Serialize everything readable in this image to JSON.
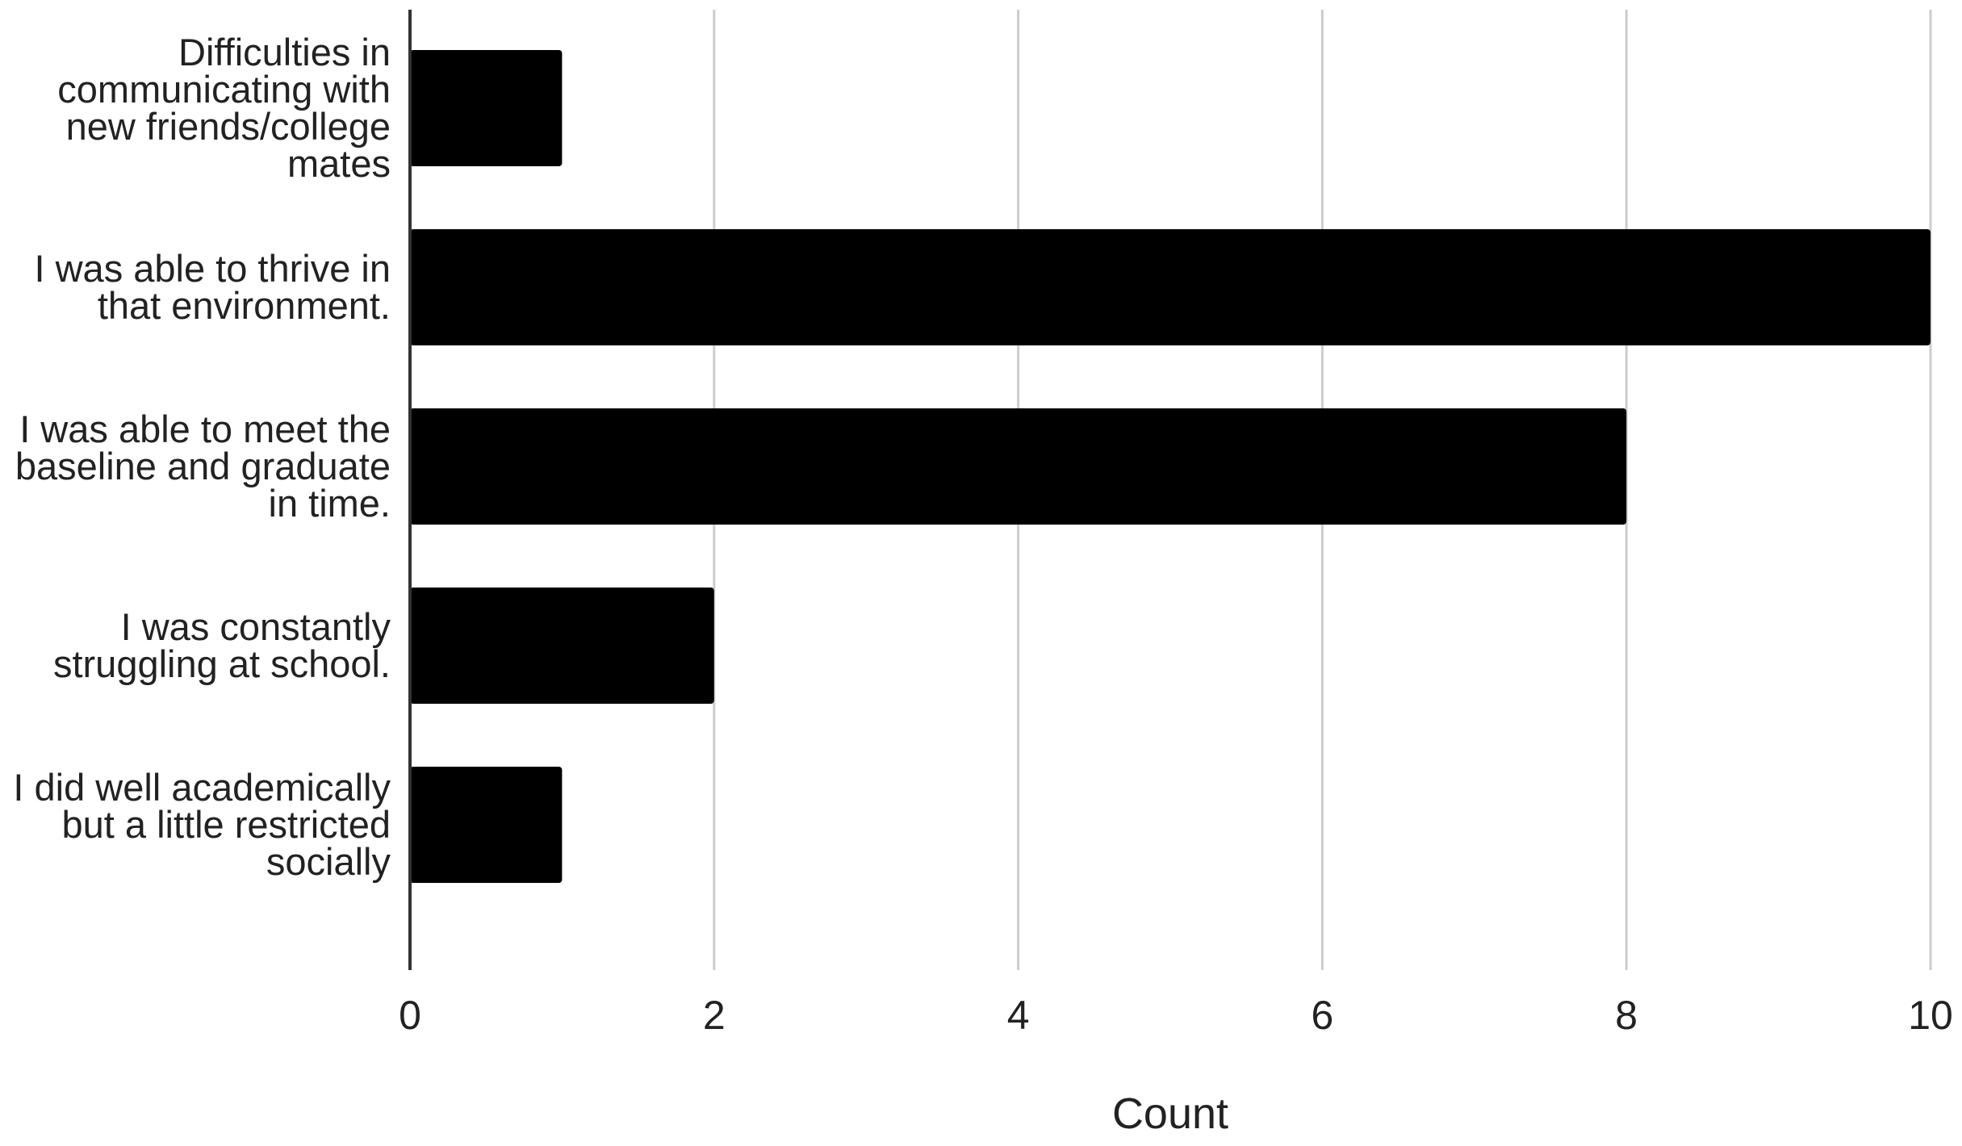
{
  "chart_data": {
    "type": "bar",
    "orientation": "horizontal",
    "categories": [
      "Difficulties in communicating with new friends/college mates",
      "I was able to thrive in that environment.",
      "I was able to meet the baseline and graduate in time.",
      "I was constantly struggling at school.",
      "I did well academically but a little restricted socially"
    ],
    "category_lines": [
      [
        "Difficulties in",
        "communicating with",
        "new friends/college",
        "mates"
      ],
      [
        "I was able to thrive in",
        "that environment."
      ],
      [
        "I was able to meet the",
        "baseline and graduate",
        "in time."
      ],
      [
        "I was constantly",
        "struggling at school."
      ],
      [
        "I did well academically",
        "but a little restricted",
        "socially"
      ]
    ],
    "values": [
      1,
      10,
      8,
      2,
      1
    ],
    "xlabel": "Count",
    "ylabel": "",
    "title": "",
    "xlim": [
      0,
      10
    ],
    "xticks": [
      "0",
      "2",
      "4",
      "6",
      "8",
      "10"
    ],
    "grid": "vertical",
    "legend": "none",
    "colors": {
      "bar": "#000000",
      "grid": "#cccccc",
      "axis": "#333333",
      "text": "#222222"
    }
  }
}
